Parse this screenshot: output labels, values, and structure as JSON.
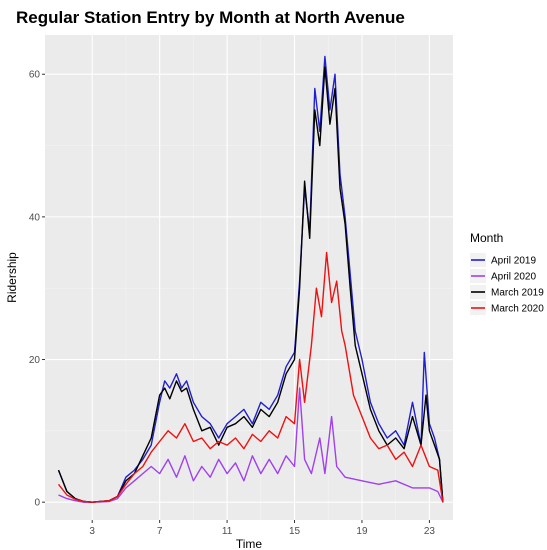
{
  "chart_data": {
    "type": "line",
    "title": "Regular Station Entry by Month at North Avenue",
    "xlabel": "Time",
    "ylabel": "Ridership",
    "xlim": [
      0.2,
      24.4
    ],
    "ylim": [
      -2.5,
      65.5
    ],
    "x_ticks": [
      3,
      7,
      11,
      15,
      19,
      23
    ],
    "y_ticks": [
      0,
      20,
      40,
      60
    ],
    "grid": true,
    "panel_background": "#ebebeb",
    "legend": {
      "title": "Month",
      "position": "right"
    },
    "series": [
      {
        "name": "April 2019",
        "color": "#2020d0",
        "points": [
          [
            1,
            4.5
          ],
          [
            1.5,
            1.5
          ],
          [
            2,
            0.5
          ],
          [
            2.5,
            0.1
          ],
          [
            3,
            0
          ],
          [
            4,
            0.2
          ],
          [
            4.5,
            0.8
          ],
          [
            5,
            3.5
          ],
          [
            5.5,
            4.5
          ],
          [
            6,
            6
          ],
          [
            6.5,
            8
          ],
          [
            7,
            14
          ],
          [
            7.3,
            17
          ],
          [
            7.6,
            16
          ],
          [
            8,
            18
          ],
          [
            8.3,
            16
          ],
          [
            8.6,
            17
          ],
          [
            9,
            14
          ],
          [
            9.5,
            12
          ],
          [
            10,
            11
          ],
          [
            10.5,
            9
          ],
          [
            11,
            11
          ],
          [
            11.5,
            12
          ],
          [
            12,
            13
          ],
          [
            12.5,
            11
          ],
          [
            13,
            14
          ],
          [
            13.5,
            13
          ],
          [
            14,
            15
          ],
          [
            14.5,
            19
          ],
          [
            15,
            21
          ],
          [
            15.3,
            31
          ],
          [
            15.6,
            44
          ],
          [
            15.9,
            38
          ],
          [
            16.2,
            58
          ],
          [
            16.5,
            52
          ],
          [
            16.8,
            62.5
          ],
          [
            17.1,
            55
          ],
          [
            17.4,
            60
          ],
          [
            17.7,
            46
          ],
          [
            18,
            40
          ],
          [
            18.3,
            32
          ],
          [
            18.6,
            24
          ],
          [
            19,
            20
          ],
          [
            19.5,
            14
          ],
          [
            20,
            11
          ],
          [
            20.5,
            9
          ],
          [
            21,
            10
          ],
          [
            21.5,
            8
          ],
          [
            22,
            14
          ],
          [
            22.5,
            8
          ],
          [
            22.7,
            21
          ],
          [
            23,
            11
          ],
          [
            23.3,
            9
          ],
          [
            23.6,
            6
          ],
          [
            23.8,
            0
          ]
        ]
      },
      {
        "name": "April 2020",
        "color": "#a040ee",
        "points": [
          [
            1,
            1
          ],
          [
            1.5,
            0.5
          ],
          [
            2,
            0.2
          ],
          [
            2.5,
            0
          ],
          [
            3,
            0
          ],
          [
            4,
            0.1
          ],
          [
            4.5,
            0.5
          ],
          [
            5,
            2
          ],
          [
            5.5,
            3
          ],
          [
            6,
            4
          ],
          [
            6.5,
            5
          ],
          [
            7,
            4
          ],
          [
            7.5,
            6
          ],
          [
            8,
            3.5
          ],
          [
            8.5,
            6.5
          ],
          [
            9,
            3
          ],
          [
            9.5,
            5
          ],
          [
            10,
            3.5
          ],
          [
            10.5,
            6
          ],
          [
            11,
            4
          ],
          [
            11.5,
            5.5
          ],
          [
            12,
            3
          ],
          [
            12.5,
            6.5
          ],
          [
            13,
            4
          ],
          [
            13.5,
            6
          ],
          [
            14,
            4
          ],
          [
            14.5,
            6.5
          ],
          [
            15,
            5
          ],
          [
            15.3,
            16
          ],
          [
            15.6,
            6
          ],
          [
            16,
            4
          ],
          [
            16.5,
            9
          ],
          [
            16.8,
            4
          ],
          [
            17.2,
            12
          ],
          [
            17.5,
            5
          ],
          [
            18,
            3.5
          ],
          [
            19,
            3
          ],
          [
            20,
            2.5
          ],
          [
            21,
            3
          ],
          [
            22,
            2
          ],
          [
            23,
            2
          ],
          [
            23.5,
            1.5
          ],
          [
            23.8,
            0
          ]
        ]
      },
      {
        "name": "March 2019",
        "color": "#000000",
        "points": [
          [
            1,
            4.5
          ],
          [
            1.5,
            1.5
          ],
          [
            2,
            0.5
          ],
          [
            2.5,
            0.1
          ],
          [
            3,
            0
          ],
          [
            4,
            0.2
          ],
          [
            4.5,
            0.8
          ],
          [
            5,
            3
          ],
          [
            5.5,
            4
          ],
          [
            6,
            6.5
          ],
          [
            6.5,
            9
          ],
          [
            7,
            15
          ],
          [
            7.3,
            16
          ],
          [
            7.6,
            14.5
          ],
          [
            8,
            17
          ],
          [
            8.3,
            15.5
          ],
          [
            8.6,
            16
          ],
          [
            9,
            13
          ],
          [
            9.5,
            10
          ],
          [
            10,
            10.5
          ],
          [
            10.5,
            8
          ],
          [
            11,
            10.5
          ],
          [
            11.5,
            11
          ],
          [
            12,
            12
          ],
          [
            12.5,
            10.5
          ],
          [
            13,
            13
          ],
          [
            13.5,
            12
          ],
          [
            14,
            14
          ],
          [
            14.5,
            18
          ],
          [
            15,
            20
          ],
          [
            15.3,
            30
          ],
          [
            15.6,
            45
          ],
          [
            15.9,
            37
          ],
          [
            16.2,
            55
          ],
          [
            16.5,
            50
          ],
          [
            16.8,
            61
          ],
          [
            17.1,
            53
          ],
          [
            17.4,
            58
          ],
          [
            17.7,
            44
          ],
          [
            18,
            39
          ],
          [
            18.3,
            30
          ],
          [
            18.6,
            22
          ],
          [
            19,
            18
          ],
          [
            19.5,
            13
          ],
          [
            20,
            10
          ],
          [
            20.5,
            8
          ],
          [
            21,
            9
          ],
          [
            21.5,
            7.5
          ],
          [
            22,
            12
          ],
          [
            22.5,
            8
          ],
          [
            22.8,
            15
          ],
          [
            23,
            10
          ],
          [
            23.3,
            8
          ],
          [
            23.6,
            6
          ],
          [
            23.8,
            0
          ]
        ]
      },
      {
        "name": "March 2020",
        "color": "#ee1111",
        "points": [
          [
            1,
            2.5
          ],
          [
            1.5,
            1
          ],
          [
            2,
            0.4
          ],
          [
            2.5,
            0.1
          ],
          [
            3,
            0
          ],
          [
            4,
            0.2
          ],
          [
            4.5,
            0.8
          ],
          [
            5,
            2.5
          ],
          [
            5.5,
            4
          ],
          [
            6,
            5
          ],
          [
            6.5,
            7
          ],
          [
            7,
            8.5
          ],
          [
            7.5,
            10
          ],
          [
            8,
            9
          ],
          [
            8.5,
            11
          ],
          [
            9,
            8.5
          ],
          [
            9.5,
            9
          ],
          [
            10,
            7.5
          ],
          [
            10.5,
            8.5
          ],
          [
            11,
            8
          ],
          [
            11.5,
            9
          ],
          [
            12,
            7.5
          ],
          [
            12.5,
            9.5
          ],
          [
            13,
            8.5
          ],
          [
            13.5,
            10
          ],
          [
            14,
            9
          ],
          [
            14.5,
            12
          ],
          [
            15,
            11
          ],
          [
            15.3,
            20
          ],
          [
            15.6,
            14
          ],
          [
            16,
            22
          ],
          [
            16.3,
            30
          ],
          [
            16.6,
            26
          ],
          [
            16.9,
            35
          ],
          [
            17.2,
            28
          ],
          [
            17.5,
            31
          ],
          [
            17.8,
            24
          ],
          [
            18,
            22
          ],
          [
            18.5,
            15
          ],
          [
            19,
            12
          ],
          [
            19.5,
            9
          ],
          [
            20,
            7.5
          ],
          [
            20.5,
            8
          ],
          [
            21,
            6
          ],
          [
            21.5,
            7
          ],
          [
            22,
            5
          ],
          [
            22.5,
            8
          ],
          [
            23,
            5
          ],
          [
            23.5,
            4.5
          ],
          [
            23.8,
            0
          ]
        ]
      }
    ]
  }
}
